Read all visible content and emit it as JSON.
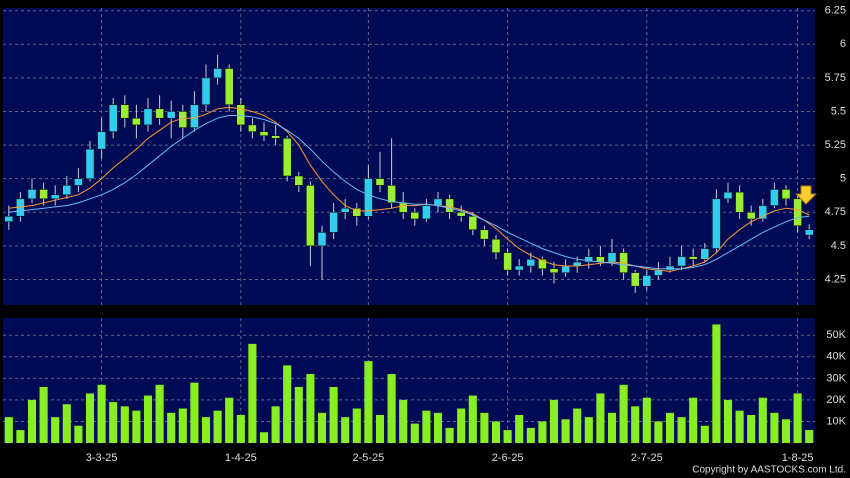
{
  "chart_data": {
    "type": "candlestick",
    "categories": [
      null,
      null,
      null,
      null,
      null,
      null,
      null,
      null,
      "3-3-25",
      null,
      null,
      null,
      null,
      null,
      null,
      null,
      null,
      null,
      null,
      null,
      "1-4-25",
      null,
      null,
      null,
      null,
      null,
      null,
      null,
      null,
      null,
      null,
      "2-5-25",
      null,
      null,
      null,
      null,
      null,
      null,
      null,
      null,
      null,
      null,
      null,
      "2-6-25",
      null,
      null,
      null,
      null,
      null,
      null,
      null,
      null,
      null,
      null,
      null,
      "2-7-25",
      null,
      null,
      null,
      null,
      null,
      null,
      null,
      null,
      null,
      null,
      null,
      null,
      "1-8-25",
      null
    ],
    "open": [
      4.68,
      4.72,
      4.85,
      4.92,
      4.85,
      4.88,
      4.95,
      5.0,
      5.22,
      5.35,
      5.55,
      5.45,
      5.4,
      5.52,
      5.45,
      5.5,
      5.38,
      5.55,
      5.75,
      5.82,
      5.55,
      5.4,
      5.35,
      5.32,
      5.3,
      5.02,
      4.95,
      4.5,
      4.6,
      4.75,
      4.78,
      4.72,
      5.0,
      4.95,
      4.82,
      4.75,
      4.7,
      4.8,
      4.85,
      4.75,
      4.72,
      4.62,
      4.55,
      4.45,
      4.32,
      4.35,
      4.4,
      4.33,
      4.3,
      4.35,
      4.38,
      4.42,
      4.38,
      4.45,
      4.3,
      4.2,
      4.28,
      4.32,
      4.35,
      4.42,
      4.4,
      4.48,
      4.85,
      4.9,
      4.75,
      4.7,
      4.8,
      4.92,
      4.85,
      4.58
    ],
    "high": [
      4.8,
      4.9,
      5.0,
      4.97,
      4.95,
      5.02,
      5.08,
      5.28,
      5.45,
      5.6,
      5.62,
      5.55,
      5.6,
      5.62,
      5.58,
      5.55,
      5.65,
      5.85,
      5.92,
      5.85,
      5.6,
      5.45,
      5.42,
      5.4,
      5.32,
      5.05,
      4.98,
      4.65,
      4.82,
      4.85,
      4.82,
      5.1,
      5.2,
      5.3,
      4.9,
      4.78,
      4.85,
      4.9,
      4.88,
      4.8,
      4.75,
      4.65,
      4.58,
      4.48,
      4.4,
      4.45,
      4.42,
      4.38,
      4.4,
      4.42,
      4.48,
      4.5,
      4.55,
      4.48,
      4.32,
      4.32,
      4.38,
      4.42,
      4.5,
      4.48,
      4.52,
      4.92,
      4.97,
      4.95,
      4.8,
      4.85,
      4.97,
      4.95,
      4.88,
      4.66
    ],
    "low": [
      4.62,
      4.68,
      4.82,
      4.8,
      4.8,
      4.85,
      4.9,
      4.98,
      5.15,
      5.3,
      5.38,
      5.3,
      5.35,
      5.4,
      5.3,
      5.3,
      5.35,
      5.5,
      5.7,
      5.5,
      5.35,
      5.3,
      5.28,
      5.25,
      4.98,
      4.9,
      4.35,
      4.25,
      4.55,
      4.7,
      4.65,
      4.7,
      4.9,
      4.78,
      4.7,
      4.65,
      4.68,
      4.75,
      4.7,
      4.68,
      4.58,
      4.5,
      4.4,
      4.28,
      4.28,
      4.3,
      4.28,
      4.22,
      4.27,
      4.3,
      4.33,
      4.35,
      4.35,
      4.25,
      4.15,
      4.17,
      4.25,
      4.3,
      4.32,
      4.35,
      4.38,
      4.45,
      4.82,
      4.7,
      4.65,
      4.68,
      4.78,
      4.8,
      4.6,
      4.55
    ],
    "close": [
      4.72,
      4.85,
      4.92,
      4.85,
      4.88,
      4.95,
      5.0,
      5.22,
      5.35,
      5.55,
      5.45,
      5.4,
      5.52,
      5.45,
      5.5,
      5.38,
      5.55,
      5.75,
      5.82,
      5.55,
      5.4,
      5.35,
      5.32,
      5.3,
      5.02,
      4.95,
      4.5,
      4.6,
      4.75,
      4.78,
      4.72,
      5.0,
      4.95,
      4.82,
      4.75,
      4.7,
      4.8,
      4.85,
      4.75,
      4.72,
      4.62,
      4.55,
      4.45,
      4.32,
      4.35,
      4.4,
      4.33,
      4.3,
      4.35,
      4.38,
      4.42,
      4.38,
      4.45,
      4.3,
      4.2,
      4.28,
      4.32,
      4.35,
      4.42,
      4.4,
      4.48,
      4.85,
      4.9,
      4.75,
      4.7,
      4.8,
      4.92,
      4.85,
      4.65,
      4.62
    ],
    "up_color": "#33ccee",
    "down_color": "#99ee33",
    "ma": [
      {
        "color": "#ff9933",
        "values": [
          4.78,
          4.79,
          4.8,
          4.82,
          4.84,
          4.86,
          4.88,
          4.93,
          5.0,
          5.08,
          5.15,
          5.22,
          5.3,
          5.36,
          5.42,
          5.45,
          5.45,
          5.48,
          5.52,
          5.53,
          5.52,
          5.5,
          5.47,
          5.42,
          5.35,
          5.25,
          5.1,
          4.98,
          4.88,
          4.8,
          4.76,
          4.76,
          4.77,
          4.78,
          4.8,
          4.8,
          4.81,
          4.8,
          4.79,
          4.77,
          4.74,
          4.69,
          4.63,
          4.55,
          4.48,
          4.43,
          4.39,
          4.36,
          4.35,
          4.35,
          4.36,
          4.37,
          4.38,
          4.37,
          4.35,
          4.33,
          4.32,
          4.31,
          4.33,
          4.35,
          4.38,
          4.45,
          4.55,
          4.62,
          4.68,
          4.72,
          4.76,
          4.78,
          4.77,
          4.73
        ]
      },
      {
        "color": "#66bbff",
        "values": [
          4.75,
          4.76,
          4.77,
          4.78,
          4.79,
          4.8,
          4.82,
          4.85,
          4.88,
          4.92,
          4.97,
          5.03,
          5.1,
          5.17,
          5.24,
          5.3,
          5.36,
          5.41,
          5.45,
          5.47,
          5.47,
          5.46,
          5.44,
          5.41,
          5.36,
          5.3,
          5.22,
          5.13,
          5.05,
          4.98,
          4.92,
          4.88,
          4.85,
          4.83,
          4.82,
          4.81,
          4.81,
          4.8,
          4.78,
          4.76,
          4.73,
          4.69,
          4.65,
          4.6,
          4.56,
          4.52,
          4.48,
          4.45,
          4.42,
          4.4,
          4.39,
          4.38,
          4.37,
          4.36,
          4.35,
          4.34,
          4.33,
          4.33,
          4.33,
          4.34,
          4.36,
          4.4,
          4.45,
          4.5,
          4.55,
          4.6,
          4.64,
          4.68,
          4.71,
          4.72
        ]
      }
    ],
    "ylim": [
      4.06,
      6.27
    ],
    "yticks": [
      4.25,
      4.5,
      4.75,
      5,
      5.25,
      5.5,
      5.75,
      6,
      6.25
    ],
    "volume": {
      "color": "#88ee22",
      "values": [
        12000,
        6000,
        20000,
        26000,
        12000,
        18000,
        8000,
        23000,
        27000,
        19000,
        17000,
        15000,
        22000,
        27000,
        14000,
        16000,
        28000,
        12000,
        15000,
        21000,
        13000,
        46000,
        5000,
        17000,
        36000,
        26000,
        32000,
        14000,
        26000,
        12000,
        16000,
        38000,
        13000,
        32000,
        20000,
        9000,
        15000,
        14000,
        7000,
        16000,
        22000,
        14000,
        10000,
        6000,
        13000,
        7000,
        10000,
        20000,
        11000,
        16000,
        12000,
        23000,
        14000,
        27000,
        17000,
        21000,
        10000,
        14000,
        12000,
        21000,
        8000,
        55000,
        20000,
        15000,
        13000,
        21000,
        14000,
        11000,
        23000,
        6000
      ],
      "ylim": [
        0,
        58000
      ],
      "yticks": [
        {
          "value": 10000,
          "label": "10K"
        },
        {
          "value": 20000,
          "label": "20K"
        },
        {
          "value": 30000,
          "label": "30K"
        },
        {
          "value": 40000,
          "label": "40K"
        },
        {
          "value": 50000,
          "label": "50K"
        }
      ]
    },
    "copyright": "Copyright by AASTOCKS.com Ltd."
  }
}
